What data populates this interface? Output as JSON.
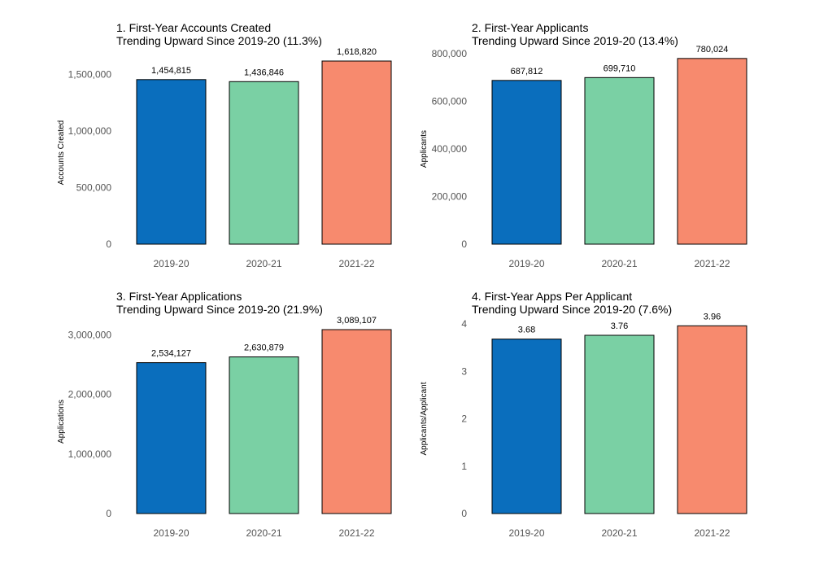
{
  "chart_data": [
    {
      "type": "bar",
      "title": "1. First-Year Accounts Created",
      "subtitle": "Trending Upward Since 2019-20 (11.3%)",
      "xlabel": "",
      "ylabel": "Accounts Created",
      "categories": [
        "2019-20",
        "2020-21",
        "2021-22"
      ],
      "values": [
        1454815,
        1436846,
        1618820
      ],
      "value_labels": [
        "1,454,815",
        "1,436,846",
        "1,618,820"
      ],
      "ylim": [
        0,
        1618820
      ],
      "yticks": [
        0,
        500000,
        1000000,
        1500000
      ],
      "ytick_labels": [
        "0",
        "500,000",
        "1,000,000",
        "1,500,000"
      ],
      "bar_colors": [
        "#0a6ebd",
        "#7ad0a4",
        "#f78a6e"
      ],
      "grid": false
    },
    {
      "type": "bar",
      "title": "2. First-Year Applicants",
      "subtitle": "Trending Upward Since 2019-20 (13.4%)",
      "xlabel": "",
      "ylabel": "Applicants",
      "categories": [
        "2019-20",
        "2020-21",
        "2021-22"
      ],
      "values": [
        687812,
        699710,
        780024
      ],
      "value_labels": [
        "687,812",
        "699,710",
        "780,024"
      ],
      "ylim": [
        0,
        800000
      ],
      "yticks": [
        0,
        200000,
        400000,
        600000,
        800000
      ],
      "ytick_labels": [
        "0",
        "200,000",
        "400,000",
        "600,000",
        "800,000"
      ],
      "bar_colors": [
        "#0a6ebd",
        "#7ad0a4",
        "#f78a6e"
      ],
      "grid": false
    },
    {
      "type": "bar",
      "title": "3. First-Year Applications",
      "subtitle": "Trending Upward Since 2019-20 (21.9%)",
      "xlabel": "",
      "ylabel": "Applications",
      "categories": [
        "2019-20",
        "2020-21",
        "2021-22"
      ],
      "values": [
        2534127,
        2630879,
        3089107
      ],
      "value_labels": [
        "2,534,127",
        "2,630,879",
        "3,089,107"
      ],
      "ylim": [
        0,
        3089107
      ],
      "yticks": [
        0,
        1000000,
        2000000,
        3000000
      ],
      "ytick_labels": [
        "0",
        "1,000,000",
        "2,000,000",
        "3,000,000"
      ],
      "bar_colors": [
        "#0a6ebd",
        "#7ad0a4",
        "#f78a6e"
      ],
      "grid": false
    },
    {
      "type": "bar",
      "title": "4. First-Year Apps Per Applicant",
      "subtitle": "Trending Upward Since 2019-20 (7.6%)",
      "xlabel": "",
      "ylabel": "Applicants/Applicant",
      "categories": [
        "2019-20",
        "2020-21",
        "2021-22"
      ],
      "values": [
        3.68,
        3.76,
        3.96
      ],
      "value_labels": [
        "3.68",
        "3.76",
        "3.96"
      ],
      "ylim": [
        0,
        4
      ],
      "yticks": [
        0,
        1,
        2,
        3,
        4
      ],
      "ytick_labels": [
        "0",
        "1",
        "2",
        "3",
        "4"
      ],
      "bar_colors": [
        "#0a6ebd",
        "#7ad0a4",
        "#f78a6e"
      ],
      "grid": false
    }
  ]
}
